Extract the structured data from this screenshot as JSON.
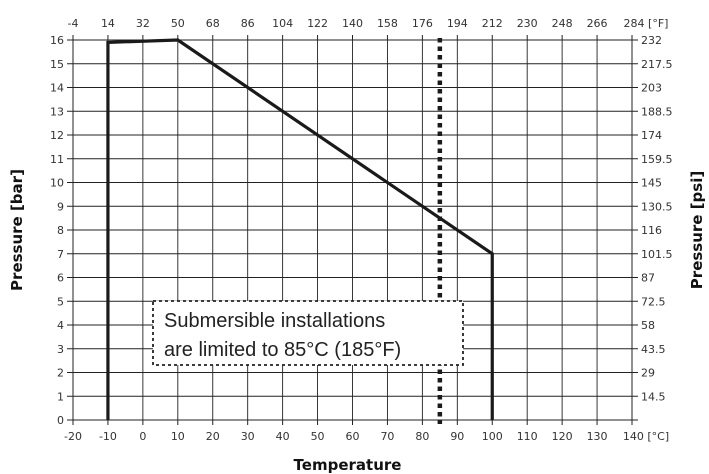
{
  "chart_data": {
    "type": "line",
    "xlabel": "Temperature",
    "ylabel_left": "Pressure [bar]",
    "ylabel_right": "Pressure [psi]",
    "x_bottom_ticks": [
      "-20",
      "-10",
      "0",
      "10",
      "20",
      "30",
      "40",
      "50",
      "60",
      "70",
      "80",
      "90",
      "100",
      "110",
      "120",
      "130",
      "140 [°C]"
    ],
    "x_top_ticks": [
      "-4",
      "14",
      "32",
      "50",
      "68",
      "86",
      "104",
      "122",
      "140",
      "158",
      "176",
      "194",
      "212",
      "230",
      "248",
      "266",
      "284 [°F]"
    ],
    "y_left_ticks": [
      "0",
      "1",
      "2",
      "3",
      "4",
      "5",
      "6",
      "7",
      "8",
      "9",
      "10",
      "11",
      "12",
      "13",
      "14",
      "15",
      "16"
    ],
    "y_right_ticks": [
      "",
      "14.5",
      "29",
      "43.5",
      "58",
      "72.5",
      "87",
      "101.5",
      "116",
      "130.5",
      "145",
      "159.5",
      "174",
      "188.5",
      "203",
      "217.5",
      "232"
    ],
    "xlim": [
      -20,
      140
    ],
    "ylim": [
      0,
      16
    ],
    "grid": true,
    "series": [
      {
        "x": [
          -10,
          -10,
          10,
          100,
          100
        ],
        "y": [
          0,
          15.9,
          16,
          7,
          0
        ]
      }
    ],
    "limit_line": {
      "x": 85,
      "style": "dotted"
    },
    "annotation": {
      "line1": "Submersible installations",
      "line2": "are limited to 85°C (185°F)"
    }
  }
}
